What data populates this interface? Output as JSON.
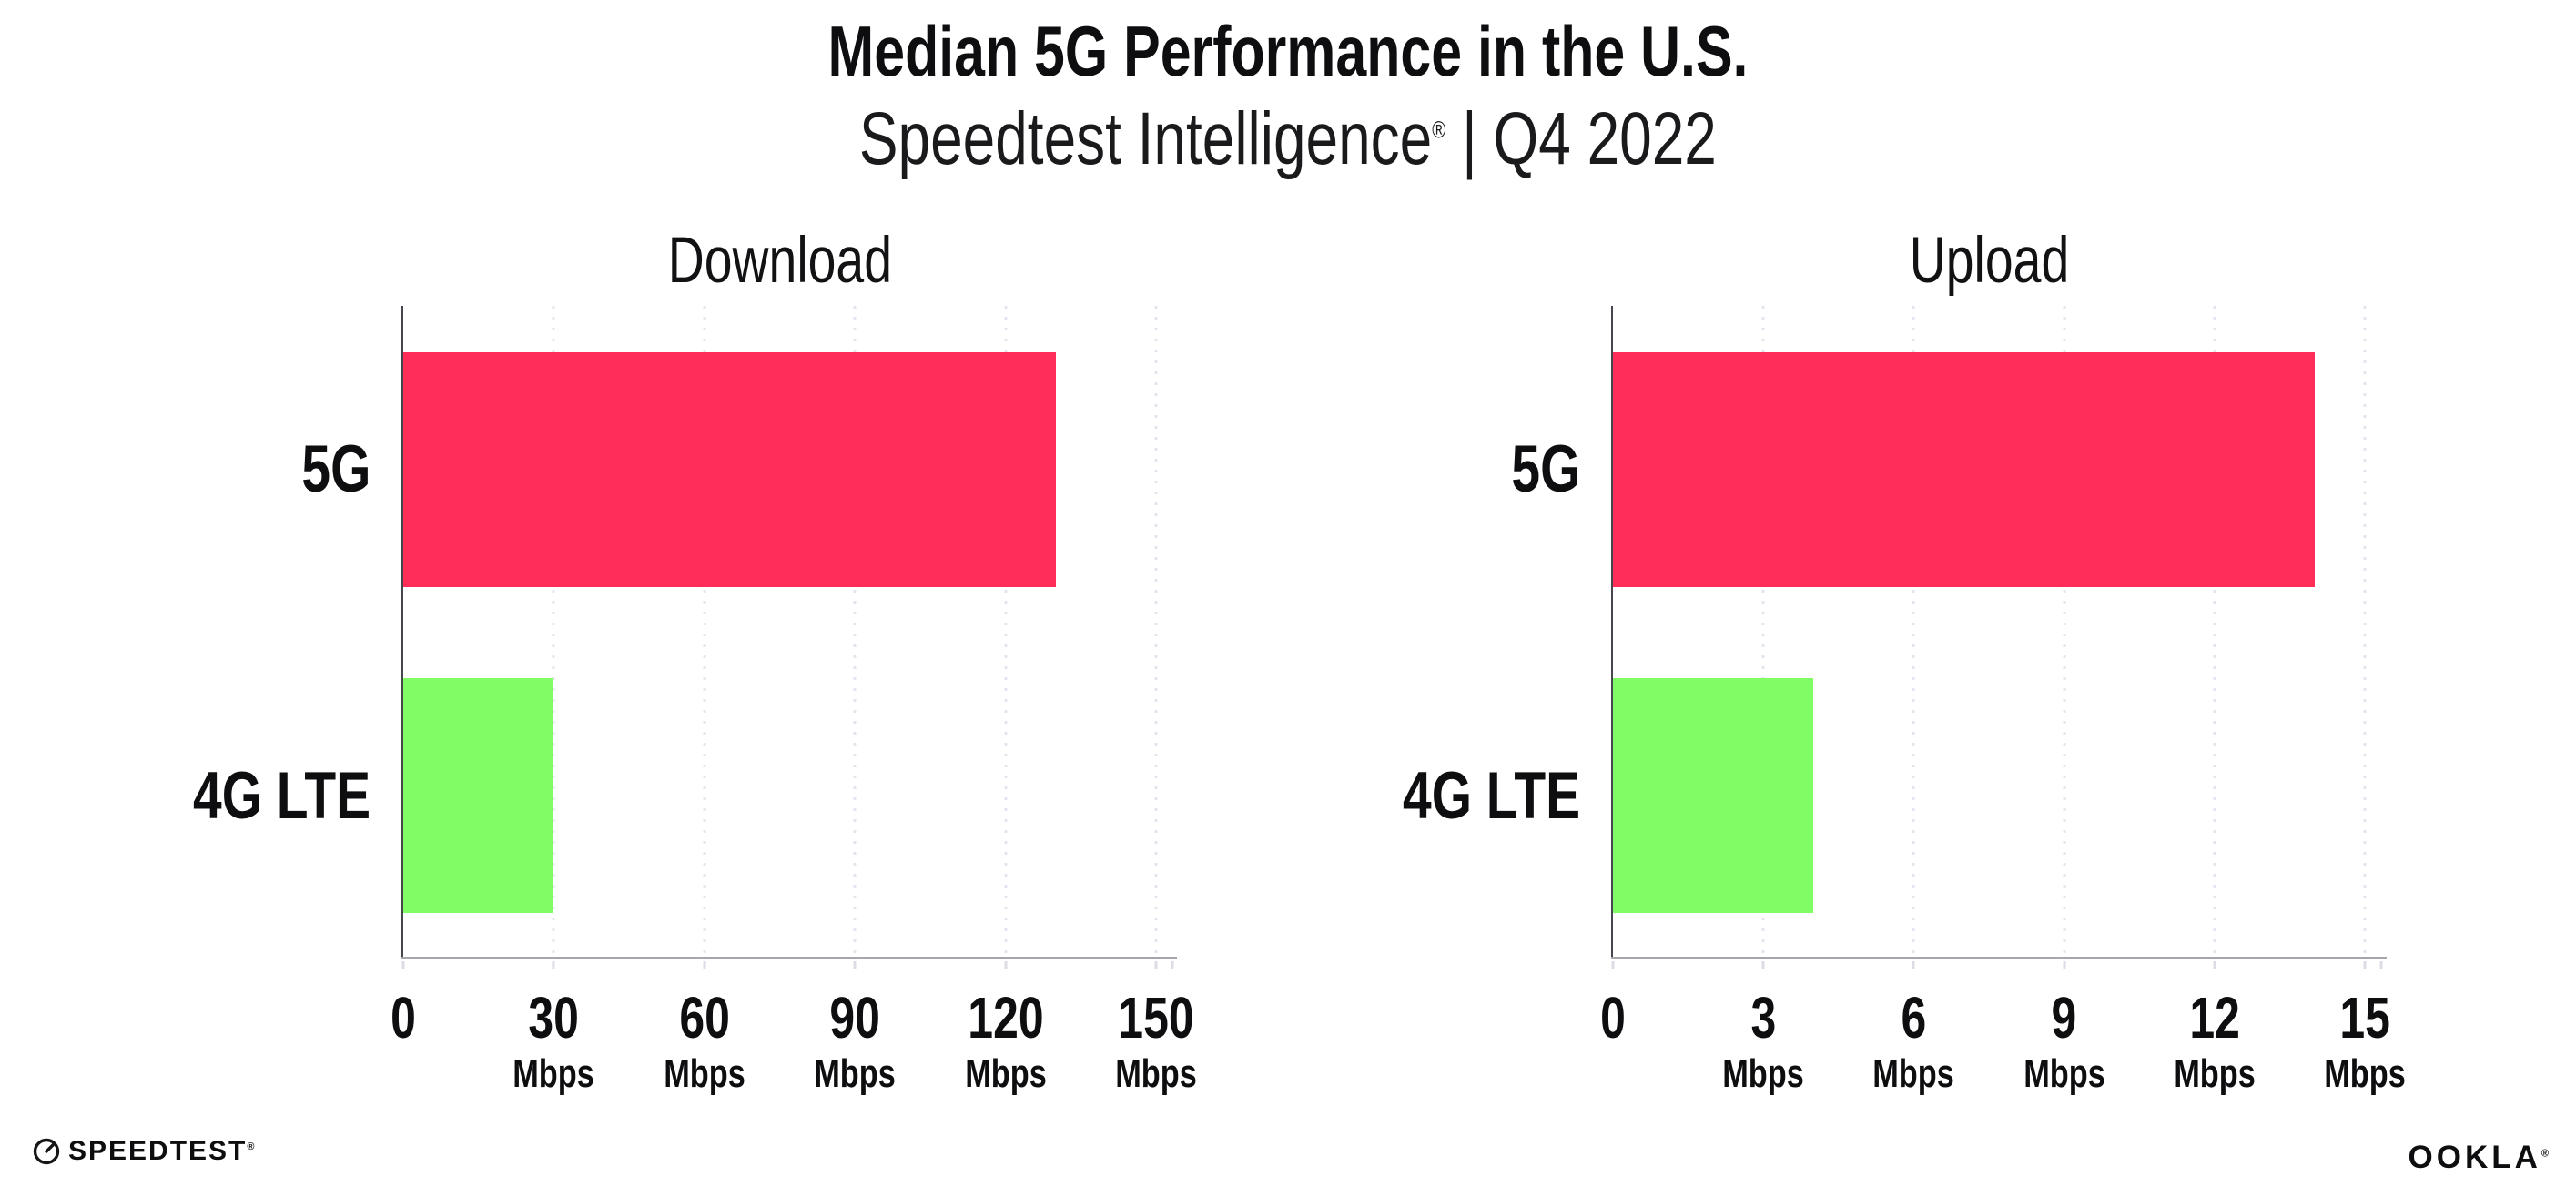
{
  "header": {
    "title": "Median 5G Performance in the U.S.",
    "subtitle_brand": "Speedtest Intelligence",
    "subtitle_mark": "®",
    "subtitle_period": " | Q4 2022"
  },
  "chart_data": [
    {
      "type": "bar",
      "orientation": "horizontal",
      "title": "Download",
      "categories": [
        "5G",
        "4G LTE"
      ],
      "values": [
        130,
        30
      ],
      "unit": "Mbps",
      "xlim": [
        0,
        150
      ],
      "xticks": [
        0,
        30,
        60,
        90,
        120,
        150
      ],
      "colors": [
        "#FF2D57",
        "#80FC64"
      ],
      "grid": "vertical-dotted",
      "legend": "none"
    },
    {
      "type": "bar",
      "orientation": "horizontal",
      "title": "Upload",
      "categories": [
        "5G",
        "4G LTE"
      ],
      "values": [
        14,
        4
      ],
      "unit": "Mbps",
      "xlim": [
        0,
        15
      ],
      "xticks": [
        0,
        3,
        6,
        9,
        12,
        15
      ],
      "colors": [
        "#FF2D57",
        "#80FC64"
      ],
      "grid": "vertical-dotted",
      "legend": "none"
    }
  ],
  "ticks": {
    "c0": [
      {
        "n": "0",
        "u": ""
      },
      {
        "n": "30",
        "u": "Mbps"
      },
      {
        "n": "60",
        "u": "Mbps"
      },
      {
        "n": "90",
        "u": "Mbps"
      },
      {
        "n": "120",
        "u": "Mbps"
      },
      {
        "n": "150",
        "u": "Mbps"
      }
    ],
    "c1": [
      {
        "n": "0",
        "u": ""
      },
      {
        "n": "3",
        "u": "Mbps"
      },
      {
        "n": "6",
        "u": "Mbps"
      },
      {
        "n": "9",
        "u": "Mbps"
      },
      {
        "n": "12",
        "u": "Mbps"
      },
      {
        "n": "15",
        "u": "Mbps"
      }
    ]
  },
  "footer": {
    "speedtest_label": "SPEEDTEST",
    "speedtest_mark": "®",
    "ookla_label": "OOKLA",
    "ookla_mark": "®"
  },
  "palette": {
    "bar_5g": "#FF2D57",
    "bar_4g_lte": "#80FC64",
    "gridline": "#E4E4EF",
    "axis_x": "#A6A6AE",
    "axis_y": "#46464E",
    "text": "#0E0E10"
  }
}
